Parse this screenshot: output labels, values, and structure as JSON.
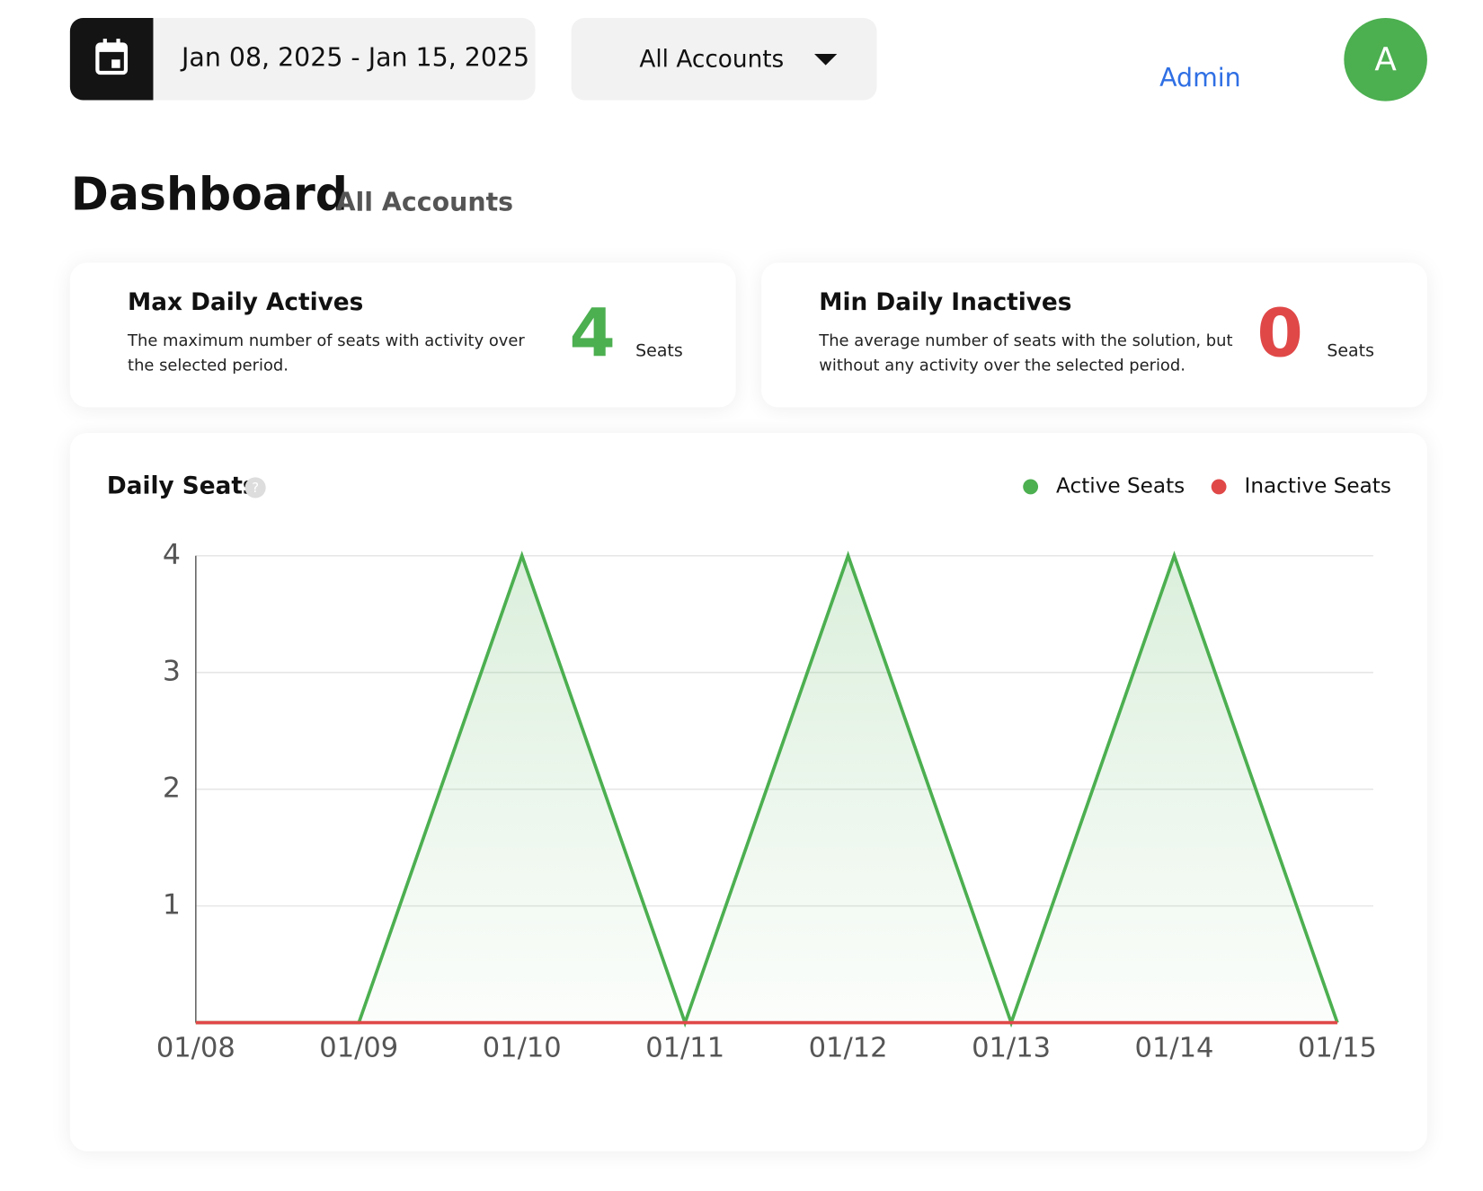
{
  "header": {
    "date_range": "Jan 08, 2025 - Jan 15, 2025",
    "account_select": "All Accounts",
    "user_role": "Admin",
    "avatar_initial": "A"
  },
  "page": {
    "title": "Dashboard",
    "subtitle": "All Accounts"
  },
  "cards": [
    {
      "title": "Max Daily Actives",
      "description": "The maximum number of seats with activity over the selected period.",
      "value": 4,
      "unit": "Seats"
    },
    {
      "title": "Min Daily Inactives",
      "description": "The average number of seats with the solution, but without any activity over the selected period.",
      "value": 0,
      "unit": "Seats"
    }
  ],
  "chart_data": {
    "type": "line",
    "title": "Daily Seats",
    "categories": [
      "01/08",
      "01/09",
      "01/10",
      "01/11",
      "01/12",
      "01/13",
      "01/14",
      "01/15"
    ],
    "series": [
      {
        "name": "Active Seats",
        "color": "#4caf50",
        "values": [
          0,
          0,
          4,
          0,
          4,
          0,
          4,
          0
        ]
      },
      {
        "name": "Inactive Seats",
        "color": "#e04848",
        "values": [
          0,
          0,
          0,
          0,
          0,
          0,
          0,
          0
        ]
      }
    ],
    "ylim": [
      0,
      4
    ],
    "yticks": [
      1,
      2,
      3,
      4
    ],
    "grid": true,
    "area": true
  }
}
